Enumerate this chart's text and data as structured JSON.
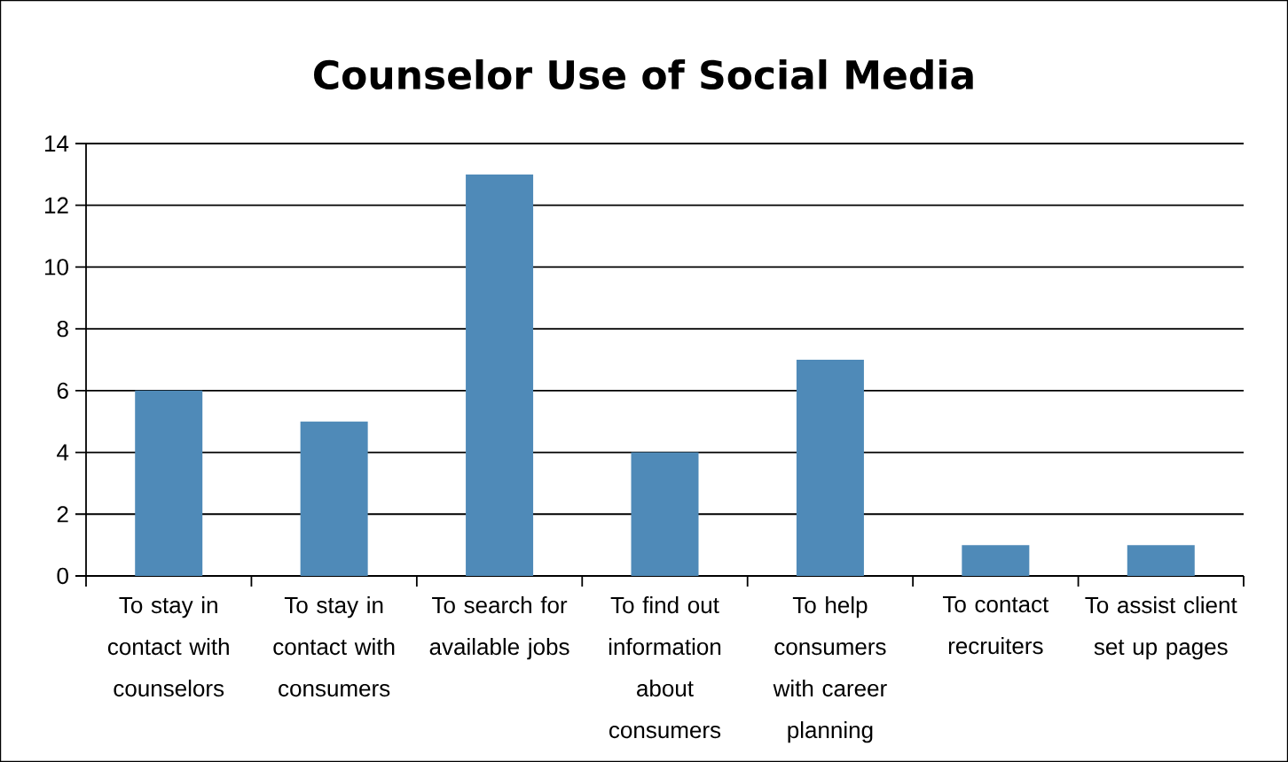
{
  "chart_data": {
    "type": "bar",
    "title": "Counselor Use of Social Media",
    "categories": [
      "To stay in contact with counselors",
      "To stay in contact with consumers",
      "To search for available jobs",
      "To find out information about consumers",
      "To help consumers with career planning",
      "To contact recruiters",
      "To assist client set up pages"
    ],
    "values": [
      6,
      5,
      13,
      4,
      7,
      1,
      1
    ],
    "color": "#4f8ab8",
    "ylim": [
      0,
      14
    ],
    "yticks": [
      0,
      2,
      4,
      6,
      8,
      10,
      12,
      14
    ],
    "grid": "y"
  }
}
